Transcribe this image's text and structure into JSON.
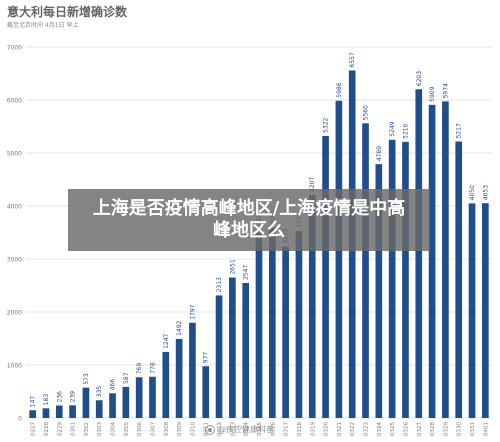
{
  "header": {
    "title": "意大利每日新增确诊数",
    "subtitle": "截至北京时间 4月1日 早上"
  },
  "overlay": {
    "text": "上海是否疫情高峰地区/上海疫情是中高峰地区么"
  },
  "watermark": {
    "text": "@疾控健康科普"
  },
  "colors": {
    "bar": "#1f4e8c",
    "grid": "#e6e6e6",
    "tick_text": "#777777",
    "label_text": "#1f4e8c"
  },
  "chart_data": {
    "type": "bar",
    "title": "意大利每日新增确诊数",
    "xlabel": "",
    "ylabel": "",
    "ylim": [
      0,
      7000
    ],
    "yticks": [
      0,
      1000,
      2000,
      3000,
      4000,
      5000,
      6000,
      7000
    ],
    "grid": true,
    "categories": [
      "0227",
      "0228",
      "0229",
      "0301",
      "0302",
      "0303",
      "0304",
      "0305",
      "0306",
      "0307",
      "0308",
      "0309",
      "0310",
      "0311",
      "0312",
      "0313",
      "0314",
      "0315",
      "0316",
      "0317",
      "0318",
      "0319",
      "0320",
      "0321",
      "0322",
      "0323",
      "0324",
      "0325",
      "0326",
      "0327",
      "0328",
      "0329",
      "0330",
      "0331",
      "0401"
    ],
    "values": [
      147,
      183,
      236,
      239,
      573,
      335,
      466,
      587,
      769,
      778,
      1247,
      1492,
      1797,
      977,
      2313,
      2651,
      2547,
      3497,
      3590,
      3233,
      3526,
      4207,
      5322,
      5986,
      6557,
      5560,
      4789,
      5249,
      5210,
      6203,
      5909,
      5974,
      5217,
      4050,
      4053
    ],
    "labels": [
      "147",
      "183",
      "236",
      "239",
      "573",
      "335",
      "466",
      "587",
      "769",
      "778",
      "1247",
      "1492",
      "1797",
      "977",
      "2313",
      "2651",
      "2547",
      "3497",
      "3590",
      "3233",
      "3526",
      "4207",
      "5322",
      "5986",
      "6557",
      "5560",
      "4789",
      "5249",
      "5210",
      "6203",
      "5909",
      "5974",
      "5217",
      "4050",
      "4053"
    ]
  }
}
